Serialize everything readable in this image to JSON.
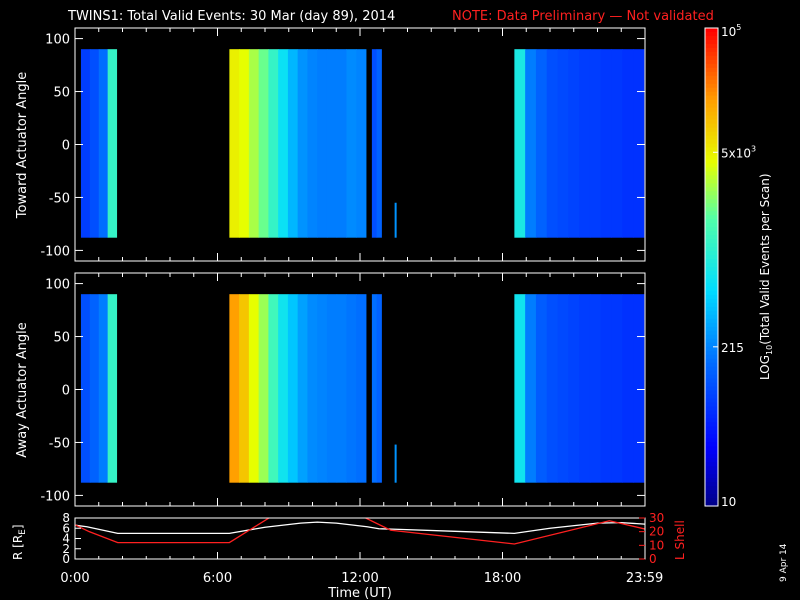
{
  "header": {
    "title": "TWINS1: Total Valid Events: 30 Mar (day  89), 2014",
    "note": "NOTE: Data Preliminary — Not validated",
    "note_color": "#ff2020"
  },
  "date_stamp": "9 Apr 14",
  "chart_data": [
    {
      "type": "heatmap",
      "ylabel": "Toward Actuator Angle",
      "xlim_hours": [
        0,
        24
      ],
      "ylim": [
        -110,
        110
      ],
      "yticks": [
        100,
        50,
        0,
        -50,
        -100
      ],
      "data_range_deg": [
        -88,
        90
      ],
      "segments": [
        {
          "start": 0.25,
          "end": 1.75,
          "levels": [
            0.22,
            0.25,
            0.3,
            0.55
          ]
        },
        {
          "start": 6.5,
          "end": 12.25,
          "levels": [
            0.74,
            0.72,
            0.67,
            0.62,
            0.55,
            0.47,
            0.4,
            0.35,
            0.33,
            0.32,
            0.32,
            0.32,
            0.34,
            0.33
          ]
        },
        {
          "start": 12.5,
          "end": 12.9,
          "levels": [
            0.25,
            0.28
          ]
        },
        {
          "start": 18.5,
          "end": 23.95,
          "levels": [
            0.5,
            0.32,
            0.28,
            0.25,
            0.24,
            0.23,
            0.22,
            0.22,
            0.21,
            0.21,
            0.2,
            0.2
          ]
        }
      ],
      "spikes": [
        {
          "hour": 13.5,
          "from": -88,
          "to": -55,
          "level": 0.35
        }
      ]
    },
    {
      "type": "heatmap",
      "ylabel": "Away Actuator Angle",
      "xlim_hours": [
        0,
        24
      ],
      "ylim": [
        -110,
        110
      ],
      "yticks": [
        100,
        50,
        0,
        -50,
        -100
      ],
      "data_range_deg": [
        -88,
        90
      ],
      "segments": [
        {
          "start": 0.25,
          "end": 1.75,
          "levels": [
            0.25,
            0.28,
            0.32,
            0.55
          ]
        },
        {
          "start": 6.5,
          "end": 12.25,
          "levels": [
            0.85,
            0.8,
            0.72,
            0.66,
            0.57,
            0.48,
            0.42,
            0.37,
            0.34,
            0.33,
            0.32,
            0.32,
            0.31,
            0.3
          ]
        },
        {
          "start": 12.5,
          "end": 12.9,
          "levels": [
            0.3,
            0.28
          ]
        },
        {
          "start": 18.5,
          "end": 23.95,
          "levels": [
            0.48,
            0.32,
            0.27,
            0.25,
            0.24,
            0.23,
            0.22,
            0.22,
            0.21,
            0.21,
            0.2,
            0.2
          ]
        }
      ],
      "spikes": [
        {
          "hour": 13.5,
          "from": -88,
          "to": -52,
          "level": 0.35
        }
      ]
    },
    {
      "type": "line",
      "ylabel": "R [R",
      "ylabel_sub": "E",
      "ylabel_close": "]",
      "y2label": "L Shell",
      "xlabel": "Time (UT)",
      "xlim_hours": [
        0,
        24
      ],
      "ylim": [
        0,
        8
      ],
      "yticks": [
        0,
        2,
        4,
        6,
        8
      ],
      "y2lim": [
        0,
        30
      ],
      "y2ticks": [
        0,
        10,
        20,
        30
      ],
      "xtick_hours": [
        0,
        6,
        12,
        18,
        23.983
      ],
      "xtick_labels": [
        "0:00",
        "6:00",
        "12:00",
        "18:00",
        "23:59"
      ],
      "series": [
        {
          "color": "#ffffff",
          "axis": "left",
          "x": [
            0,
            0.5,
            1.8,
            6.5,
            8.0,
            9.5,
            10.2,
            11,
            12.3,
            12.8,
            13.5,
            16,
            18.5,
            20,
            22,
            23,
            23.983
          ],
          "y": [
            6.6,
            6.3,
            5.0,
            5.0,
            6.2,
            7.0,
            7.2,
            7.0,
            6.3,
            5.9,
            5.8,
            5.4,
            5.0,
            6.0,
            7.0,
            7.1,
            6.8
          ]
        },
        {
          "color": "#ff2020",
          "axis": "right",
          "x": [
            0,
            0.6,
            1.8,
            6.5,
            8.35,
            12.0,
            13.3,
            18.5,
            22.5,
            23.983
          ],
          "y": [
            25,
            20,
            12,
            12,
            32,
            32,
            21,
            11,
            28,
            22
          ]
        }
      ]
    }
  ],
  "colorbar": {
    "label": "LOG",
    "label_sub": "10",
    "label_rest": "(Total Valid  Events per Scan)",
    "ticks": [
      {
        "base": "10",
        "exp": "5",
        "pos": 1.0
      },
      {
        "base": "5x10",
        "exp": "3",
        "pos": 0.74
      },
      {
        "base": "215",
        "exp": "",
        "pos": 0.333
      },
      {
        "base": "10",
        "exp": "",
        "pos": 0.0
      }
    ]
  }
}
